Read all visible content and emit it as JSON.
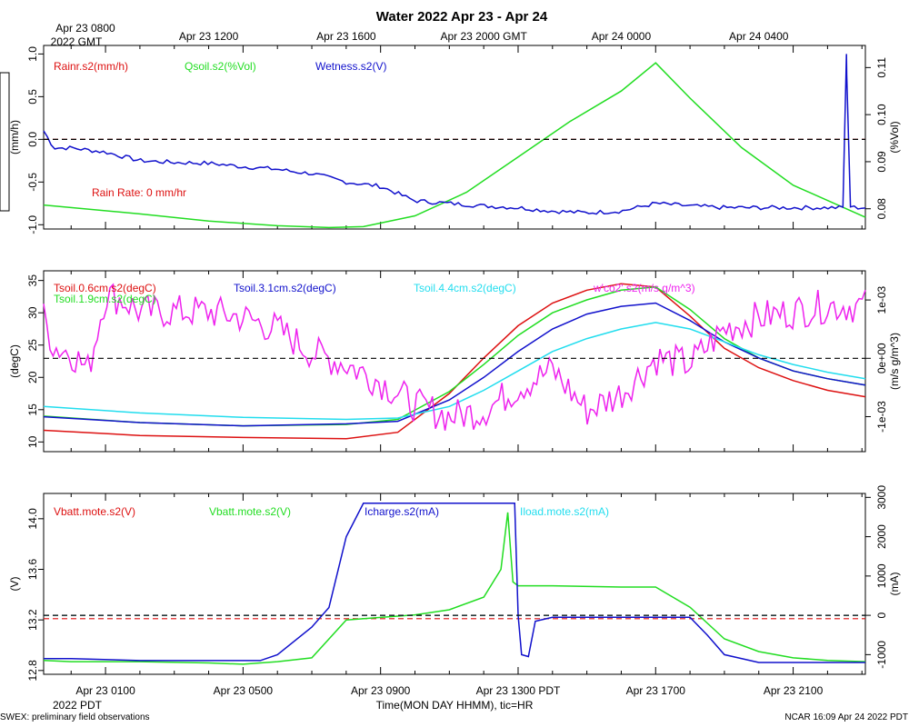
{
  "header": {
    "title": "Water 2022 Apr 23 - Apr 24",
    "top_time_labels": [
      "Apr 23 1200",
      "Apr 23 1600",
      "Apr 23 2000 GMT",
      "Apr 24 0000",
      "Apr 24 0400"
    ],
    "top_first_label_line1": "Apr 23 0800",
    "top_first_label_line2": "2022 GMT"
  },
  "footer": {
    "bottom_time_labels": [
      "Apr 23 0100",
      "Apr 23 0500",
      "Apr 23 0900",
      "Apr 23 1300 PDT",
      "Apr 23 1700",
      "Apr 23 2100"
    ],
    "year_label": "2022 PDT",
    "xlabel": "Time(MON DAY HHMM), tic=HR",
    "left_note": "SWEX: preliminary field observations",
    "right_note": "NCAR 16:09 Apr 24 2022 PDT"
  },
  "colors": {
    "red": "#dd1111",
    "green": "#22dd22",
    "blue": "#1111cc",
    "cyan": "#22ddee",
    "magenta": "#ee22ee",
    "black": "#000000"
  },
  "chart_data": [
    {
      "type": "line",
      "panel": "water",
      "x_unit": "hours since Apr 23 0000 PDT",
      "xlim": [
        -0.8,
        23.1
      ],
      "ylim_left": [
        -1.05,
        1.1
      ],
      "ylim_right": [
        0.0757,
        0.1147
      ],
      "ylabel_left": "(mm/h)",
      "ylabel_right": "(%Vol)",
      "yticks_left": [
        "-1.0",
        "-0.5",
        "0.0",
        "0.5",
        "1.0"
      ],
      "yticks_left_values": [
        -1.0,
        -0.5,
        0.0,
        0.5,
        1.0
      ],
      "yticks_right": [
        "0.08",
        "0.09",
        "0.10",
        "0.11"
      ],
      "yticks_right_values": [
        0.08,
        0.09,
        0.1,
        0.11
      ],
      "reference_line": 0.0,
      "annotation": "Rain Rate: 0 mm/hr",
      "series": [
        {
          "name": "Rainr.s2(mm/h)",
          "color": "#dd1111",
          "axis": "left",
          "x": [
            -0.8,
            23.1
          ],
          "y": [
            0.0,
            0.0
          ]
        },
        {
          "name": "Qsoil.s2(%Vol)",
          "color": "#22dd22",
          "axis": "right",
          "x": [
            -0.8,
            2,
            4,
            6,
            7.5,
            8.5,
            10,
            11.5,
            13,
            14.5,
            16,
            17,
            18,
            19.5,
            21,
            23.1
          ],
          "y": [
            0.0808,
            0.0789,
            0.0774,
            0.0764,
            0.076,
            0.0762,
            0.0785,
            0.0835,
            0.091,
            0.0985,
            0.105,
            0.111,
            0.1035,
            0.093,
            0.085,
            0.0782
          ]
        },
        {
          "name": "Wetness.s2(V)",
          "color": "#1111cc",
          "axis": "left",
          "x": [
            -0.8,
            -0.5,
            0,
            1,
            2,
            3,
            4,
            5,
            6,
            6.5,
            7,
            8,
            9,
            10,
            11,
            12,
            13,
            14,
            15,
            16,
            17,
            18,
            19,
            20,
            21,
            22,
            22.5,
            22.55,
            22.6,
            22.8,
            23.1
          ],
          "y": [
            0.1,
            -0.1,
            -0.1,
            -0.15,
            -0.25,
            -0.27,
            -0.28,
            -0.32,
            -0.35,
            -0.38,
            -0.4,
            -0.5,
            -0.55,
            -0.72,
            -0.75,
            -0.78,
            -0.8,
            -0.84,
            -0.86,
            -0.84,
            -0.75,
            -0.78,
            -0.8,
            -0.8,
            -0.8,
            -0.8,
            -0.8,
            1.0,
            -0.78,
            -0.8,
            -0.8
          ]
        }
      ]
    },
    {
      "type": "line",
      "panel": "soil_temperature",
      "x_unit": "hours since Apr 23 0000 PDT",
      "xlim": [
        -0.8,
        23.1
      ],
      "ylim_left": [
        8.5,
        36.5
      ],
      "ylim_right": [
        -0.0016,
        0.0015
      ],
      "ylabel_left": "(degC)",
      "ylabel_right": "(m/s g/m^3)",
      "yticks_left": [
        "10",
        "15",
        "20",
        "25",
        "30",
        "35"
      ],
      "yticks_left_values": [
        10,
        15,
        20,
        25,
        30,
        35
      ],
      "yticks_right": [
        "-1e-03",
        "0e+00",
        "1e-03"
      ],
      "yticks_right_values": [
        -0.001,
        0.0,
        0.001
      ],
      "reference_line_right": 0.0,
      "series": [
        {
          "name": "Tsoil.0.6cm.s2(degC)",
          "color": "#dd1111",
          "axis": "left",
          "x": [
            -0.8,
            2,
            5,
            8,
            9.5,
            11,
            12,
            13,
            14,
            15,
            16,
            17,
            18,
            19,
            20,
            21,
            22,
            23.1
          ],
          "y": [
            11.8,
            11.0,
            10.7,
            10.5,
            11.5,
            17.5,
            23.0,
            28.0,
            31.5,
            33.5,
            34.5,
            34.0,
            29.5,
            24.5,
            21.5,
            19.5,
            18.0,
            17.0
          ]
        },
        {
          "name": "Tsoil.1.9cm.s2(degC)",
          "color": "#22dd22",
          "axis": "left",
          "x": [
            -0.8,
            2,
            5,
            8,
            9.5,
            11,
            12,
            13,
            14,
            15,
            16,
            17,
            18,
            19,
            20,
            21,
            22,
            23.1
          ],
          "y": [
            14.0,
            13.0,
            12.5,
            12.7,
            13.5,
            17.8,
            22.0,
            26.5,
            30.0,
            32.0,
            33.5,
            34.0,
            30.5,
            26.0,
            23.0,
            21.0,
            19.8,
            18.8
          ]
        },
        {
          "name": "Tsoil.3.1cm.s2(degC)",
          "color": "#1111cc",
          "axis": "left",
          "x": [
            -0.8,
            2,
            5,
            8,
            9.5,
            11,
            12,
            13,
            14,
            15,
            16,
            17,
            18,
            19,
            20,
            21,
            22,
            23.1
          ],
          "y": [
            13.9,
            13.0,
            12.5,
            12.8,
            13.2,
            16.5,
            20.0,
            24.0,
            27.5,
            29.8,
            31.0,
            31.5,
            28.8,
            25.5,
            23.0,
            21.0,
            19.8,
            18.8
          ]
        },
        {
          "name": "Tsoil.4.4cm.s2(degC)",
          "color": "#22ddee",
          "axis": "left",
          "x": [
            -0.8,
            2,
            5,
            8,
            9.5,
            11,
            12,
            13,
            14,
            15,
            16,
            17,
            18,
            19,
            20,
            21,
            22,
            23.1
          ],
          "y": [
            15.5,
            14.5,
            13.8,
            13.5,
            13.7,
            15.5,
            18.0,
            21.0,
            24.0,
            26.0,
            27.5,
            28.5,
            27.5,
            25.5,
            23.5,
            22.0,
            20.8,
            19.8
          ]
        },
        {
          "name": "w'co2'.s2(m/s g/m^3)",
          "color": "#ee22ee",
          "axis": "right",
          "x": [
            -0.8,
            -0.5,
            0,
            0.5,
            1,
            1.5,
            2,
            3,
            4,
            5,
            6,
            7,
            8,
            9,
            10,
            11,
            12,
            13,
            14,
            15,
            16,
            17,
            18,
            19,
            20,
            21,
            22,
            23.1
          ],
          "y": [
            0.0007,
            0.0002,
            0.0001,
            -0.0002,
            0.0011,
            0.001,
            0.0008,
            0.0008,
            0.0008,
            0.0007,
            0.0005,
            0.0001,
            -0.0001,
            -0.0004,
            -0.0008,
            -0.001,
            -0.0009,
            -0.0005,
            -0.0002,
            -0.0009,
            -0.0006,
            0.0,
            -0.0001,
            0.0005,
            0.0007,
            0.0008,
            0.0009,
            0.0009
          ],
          "noise_amplitude": 0.0003
        }
      ]
    },
    {
      "type": "line",
      "panel": "power",
      "x_unit": "hours since Apr 23 0000 PDT",
      "xlim": [
        -0.8,
        23.1
      ],
      "ylim_left": [
        12.77,
        14.2
      ],
      "ylim_right": [
        -1500,
        3100
      ],
      "ylabel_left": "(V)",
      "ylabel_right": "(mA)",
      "yticks_left": [
        "12.8",
        "13.2",
        "13.6",
        "14.0"
      ],
      "yticks_left_values": [
        12.8,
        13.2,
        13.6,
        14.0
      ],
      "yticks_right": [
        "-1000",
        "0",
        "1000",
        "2000",
        "3000"
      ],
      "yticks_right_values": [
        -1000,
        0,
        1000,
        2000,
        3000
      ],
      "reference_line_right": 0.0,
      "series": [
        {
          "name": "Vbatt.mote.s2(V)",
          "color": "#dd1111",
          "axis": "left",
          "x": [
            -0.8,
            23.1
          ],
          "y": [
            13.21,
            13.21
          ]
        },
        {
          "name": "Vbatt.mote.s2(V)",
          "color": "#22dd22",
          "axis": "left",
          "x": [
            -0.8,
            0,
            2,
            4,
            5,
            6,
            7,
            8,
            9,
            10,
            11,
            12,
            12.5,
            12.7,
            12.85,
            13,
            14,
            16,
            17,
            18,
            19,
            20,
            21,
            22,
            23.1
          ],
          "y": [
            12.88,
            12.87,
            12.87,
            12.86,
            12.85,
            12.87,
            12.9,
            13.2,
            13.22,
            13.24,
            13.28,
            13.38,
            13.6,
            14.05,
            13.5,
            13.47,
            13.47,
            13.46,
            13.46,
            13.3,
            13.05,
            12.95,
            12.9,
            12.88,
            12.87
          ]
        },
        {
          "name": "Icharge.s2(mA)",
          "color": "#1111cc",
          "axis": "right",
          "x": [
            -0.8,
            0,
            2,
            4,
            5.5,
            6,
            7,
            7.5,
            8,
            8.5,
            9,
            10,
            11,
            12,
            12.9,
            13.0,
            13.1,
            13.3,
            13.5,
            14,
            16,
            17,
            18,
            18.5,
            19,
            20,
            21,
            22,
            23.1
          ],
          "y": [
            -1100,
            -1100,
            -1150,
            -1150,
            -1150,
            -1000,
            -300,
            200,
            2000,
            2850,
            2850,
            2850,
            2850,
            2850,
            2850,
            0,
            -1000,
            -1050,
            -150,
            -50,
            -50,
            -50,
            -50,
            -500,
            -1000,
            -1200,
            -1200,
            -1200,
            -1200
          ]
        },
        {
          "name": "Iload.mote.s2(mA)",
          "color": "#22ddee",
          "axis": "right",
          "x": [
            -0.8,
            23.1
          ],
          "y": [
            0.0,
            0.0
          ]
        }
      ]
    }
  ]
}
